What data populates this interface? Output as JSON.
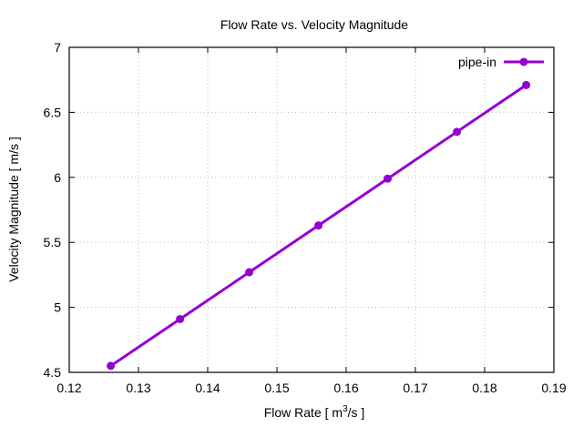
{
  "chart_data": {
    "type": "line",
    "title": "Flow Rate vs. Velocity Magnitude",
    "xlabel_main": "Flow Rate [ m",
    "xlabel_sup": "3",
    "xlabel_tail": "/s ]",
    "ylabel": "Velocity Magnitude [ m/s ]",
    "xlim": [
      0.12,
      0.19
    ],
    "ylim": [
      4.5,
      7
    ],
    "xticks": [
      "0.12",
      "0.13",
      "0.14",
      "0.15",
      "0.16",
      "0.17",
      "0.18",
      "0.19"
    ],
    "yticks": [
      "4.5",
      "5",
      "5.5",
      "6",
      "6.5",
      "7"
    ],
    "grid": true,
    "legend_position": "top-right",
    "series": [
      {
        "name": "pipe-in",
        "color": "#9400d3",
        "x": [
          0.126,
          0.136,
          0.146,
          0.156,
          0.166,
          0.176,
          0.186
        ],
        "y": [
          4.55,
          4.91,
          5.27,
          5.63,
          5.99,
          6.35,
          6.71
        ]
      }
    ]
  }
}
